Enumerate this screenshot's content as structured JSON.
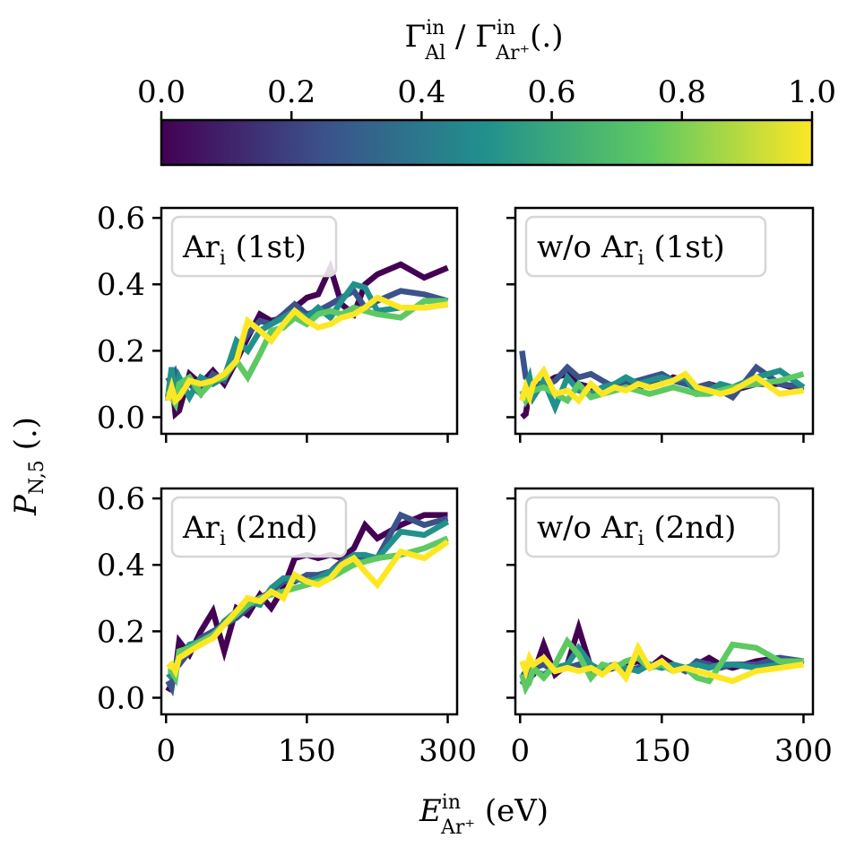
{
  "colorbar": {
    "label_main": "Γ",
    "label_sup1": "in",
    "label_sub1": "Al",
    "label_sep": " / Γ",
    "label_sup2": "in",
    "label_sub2": "Ar⁺",
    "label_tail": "(.)",
    "ticks": [
      "0.0",
      "0.2",
      "0.4",
      "0.6",
      "0.8",
      "1.0"
    ],
    "tick_values": [
      0.0,
      0.2,
      0.4,
      0.6,
      0.8,
      1.0
    ],
    "colors": [
      "#440154",
      "#3b528b",
      "#21918c",
      "#5ec962",
      "#fde725"
    ]
  },
  "ylabel": {
    "main": "P",
    "sub": "N,5",
    "tail": " (.)"
  },
  "xlabel": {
    "main": "E",
    "sup": "in",
    "sub": "Ar⁺",
    "tail": " (eV)"
  },
  "series_colors": [
    "#440154",
    "#3b528b",
    "#21918c",
    "#5ec962",
    "#fde725"
  ],
  "chart_data": [
    {
      "type": "line",
      "panel": "top-left",
      "legend_label": {
        "main": "Ar",
        "sub": "i",
        "tail": " (1st)"
      },
      "xlim": [
        -5,
        310
      ],
      "ylim": [
        -0.05,
        0.63
      ],
      "xticks": [
        0,
        150,
        300
      ],
      "yticks": [
        0.0,
        0.2,
        0.4,
        0.6
      ],
      "yticklabels": [
        "0.0",
        "0.2",
        "0.4",
        "0.6"
      ],
      "x": [
        2,
        6,
        10,
        14,
        25,
        37,
        50,
        62,
        75,
        87,
        100,
        112,
        125,
        137,
        150,
        162,
        175,
        187,
        200,
        212,
        225,
        250,
        275,
        300
      ],
      "series": [
        {
          "color_value": 0.0,
          "values": [
            0.05,
            0.12,
            0.01,
            0.02,
            0.13,
            0.1,
            0.14,
            0.1,
            0.17,
            0.24,
            0.31,
            0.29,
            0.3,
            0.33,
            0.36,
            0.37,
            0.45,
            0.34,
            0.31,
            0.4,
            0.43,
            0.46,
            0.42,
            0.45
          ]
        },
        {
          "color_value": 0.25,
          "values": [
            0.12,
            0.1,
            0.13,
            0.09,
            0.1,
            0.07,
            0.13,
            0.11,
            0.2,
            0.25,
            0.29,
            0.28,
            0.31,
            0.34,
            0.31,
            0.32,
            0.34,
            0.36,
            0.38,
            0.33,
            0.35,
            0.38,
            0.37,
            0.35
          ]
        },
        {
          "color_value": 0.5,
          "values": [
            0.06,
            0.15,
            0.05,
            0.12,
            0.06,
            0.12,
            0.1,
            0.12,
            0.23,
            0.2,
            0.26,
            0.28,
            0.3,
            0.32,
            0.3,
            0.33,
            0.3,
            0.35,
            0.4,
            0.39,
            0.32,
            0.33,
            0.33,
            0.34
          ]
        },
        {
          "color_value": 0.75,
          "values": [
            0.08,
            0.06,
            0.04,
            0.1,
            0.12,
            0.07,
            0.11,
            0.12,
            0.17,
            0.12,
            0.19,
            0.26,
            0.27,
            0.3,
            0.28,
            0.31,
            0.32,
            0.31,
            0.33,
            0.32,
            0.31,
            0.3,
            0.35,
            0.35
          ]
        },
        {
          "color_value": 1.0,
          "values": [
            0.05,
            0.09,
            0.05,
            0.06,
            0.11,
            0.1,
            0.11,
            0.13,
            0.17,
            0.29,
            0.26,
            0.23,
            0.28,
            0.32,
            0.29,
            0.27,
            0.28,
            0.3,
            0.31,
            0.33,
            0.36,
            0.33,
            0.33,
            0.34
          ]
        }
      ]
    },
    {
      "type": "line",
      "panel": "top-right",
      "legend_label": {
        "main": "w/o Ar",
        "sub": "i",
        "tail": " (1st)"
      },
      "xlim": [
        -5,
        310
      ],
      "ylim": [
        -0.05,
        0.63
      ],
      "xticks": [
        0,
        150,
        300
      ],
      "yticks": [
        0.0,
        0.2,
        0.4,
        0.6
      ],
      "x": [
        2,
        6,
        10,
        14,
        25,
        37,
        50,
        62,
        75,
        87,
        100,
        112,
        125,
        137,
        150,
        162,
        175,
        187,
        200,
        212,
        225,
        250,
        275,
        300
      ],
      "series": [
        {
          "color_value": 0.0,
          "values": [
            0.0,
            0.01,
            0.08,
            0.1,
            0.1,
            0.12,
            0.13,
            0.1,
            0.09,
            0.08,
            0.1,
            0.11,
            0.09,
            0.1,
            0.1,
            0.12,
            0.11,
            0.09,
            0.1,
            0.09,
            0.08,
            0.1,
            0.1,
            0.08
          ]
        },
        {
          "color_value": 0.25,
          "values": [
            0.2,
            0.12,
            0.11,
            0.1,
            0.09,
            0.11,
            0.15,
            0.12,
            0.13,
            0.11,
            0.09,
            0.1,
            0.11,
            0.12,
            0.13,
            0.11,
            0.1,
            0.09,
            0.1,
            0.08,
            0.06,
            0.15,
            0.1,
            0.09
          ]
        },
        {
          "color_value": 0.5,
          "values": [
            0.05,
            0.09,
            0.12,
            0.06,
            0.11,
            0.03,
            0.12,
            0.08,
            0.07,
            0.09,
            0.1,
            0.12,
            0.1,
            0.11,
            0.12,
            0.11,
            0.12,
            0.07,
            0.08,
            0.1,
            0.09,
            0.12,
            0.14,
            0.09
          ]
        },
        {
          "color_value": 0.75,
          "values": [
            0.08,
            0.05,
            0.07,
            0.08,
            0.09,
            0.07,
            0.05,
            0.1,
            0.06,
            0.07,
            0.08,
            0.09,
            0.08,
            0.07,
            0.08,
            0.09,
            0.08,
            0.07,
            0.07,
            0.08,
            0.09,
            0.1,
            0.11,
            0.13
          ]
        },
        {
          "color_value": 1.0,
          "values": [
            0.05,
            0.09,
            0.06,
            0.1,
            0.14,
            0.07,
            0.08,
            0.05,
            0.1,
            0.07,
            0.09,
            0.08,
            0.1,
            0.09,
            0.1,
            0.11,
            0.13,
            0.09,
            0.08,
            0.07,
            0.08,
            0.12,
            0.07,
            0.08
          ]
        }
      ]
    },
    {
      "type": "line",
      "panel": "bottom-left",
      "legend_label": {
        "main": "Ar",
        "sub": "i",
        "tail": " (2nd)"
      },
      "xlim": [
        -5,
        310
      ],
      "ylim": [
        -0.05,
        0.63
      ],
      "xticks": [
        0,
        150,
        300
      ],
      "yticks": [
        0.0,
        0.2,
        0.4,
        0.6
      ],
      "yticklabels": [
        "0.0",
        "0.2",
        "0.4",
        "0.6"
      ],
      "xticklabels": [
        "0",
        "150",
        "300"
      ],
      "x": [
        2,
        6,
        10,
        14,
        25,
        37,
        50,
        62,
        75,
        87,
        100,
        112,
        125,
        137,
        150,
        162,
        175,
        187,
        200,
        212,
        225,
        250,
        275,
        300
      ],
      "series": [
        {
          "color_value": 0.0,
          "values": [
            0.02,
            0.04,
            0.08,
            0.17,
            0.13,
            0.2,
            0.26,
            0.14,
            0.27,
            0.25,
            0.31,
            0.27,
            0.33,
            0.42,
            0.43,
            0.42,
            0.43,
            0.42,
            0.45,
            0.52,
            0.48,
            0.52,
            0.55,
            0.55
          ]
        },
        {
          "color_value": 0.25,
          "values": [
            0.05,
            0.03,
            0.1,
            0.1,
            0.14,
            0.18,
            0.2,
            0.22,
            0.24,
            0.27,
            0.3,
            0.32,
            0.35,
            0.35,
            0.37,
            0.37,
            0.38,
            0.41,
            0.43,
            0.42,
            0.42,
            0.55,
            0.52,
            0.54
          ]
        },
        {
          "color_value": 0.5,
          "values": [
            0.06,
            0.07,
            0.1,
            0.12,
            0.16,
            0.17,
            0.18,
            0.23,
            0.26,
            0.29,
            0.28,
            0.33,
            0.36,
            0.36,
            0.35,
            0.36,
            0.38,
            0.4,
            0.43,
            0.43,
            0.42,
            0.5,
            0.49,
            0.53
          ]
        },
        {
          "color_value": 0.75,
          "values": [
            0.08,
            0.08,
            0.06,
            0.14,
            0.15,
            0.17,
            0.19,
            0.22,
            0.25,
            0.28,
            0.3,
            0.31,
            0.32,
            0.33,
            0.34,
            0.35,
            0.36,
            0.38,
            0.4,
            0.41,
            0.42,
            0.43,
            0.45,
            0.48
          ]
        },
        {
          "color_value": 1.0,
          "values": [
            0.09,
            0.1,
            0.08,
            0.12,
            0.14,
            0.16,
            0.18,
            0.22,
            0.26,
            0.3,
            0.29,
            0.32,
            0.3,
            0.37,
            0.35,
            0.34,
            0.36,
            0.4,
            0.42,
            0.38,
            0.34,
            0.44,
            0.42,
            0.47
          ]
        }
      ]
    },
    {
      "type": "line",
      "panel": "bottom-right",
      "legend_label": {
        "main": "w/o Ar",
        "sub": "i",
        "tail": " (2nd)"
      },
      "xlim": [
        -5,
        310
      ],
      "ylim": [
        -0.05,
        0.63
      ],
      "xticks": [
        0,
        150,
        300
      ],
      "yticks": [
        0.0,
        0.2,
        0.4,
        0.6
      ],
      "xticklabels": [
        "0",
        "150",
        "300"
      ],
      "x": [
        2,
        6,
        10,
        14,
        25,
        37,
        50,
        62,
        75,
        87,
        100,
        112,
        125,
        137,
        150,
        162,
        175,
        187,
        200,
        212,
        225,
        250,
        275,
        300
      ],
      "series": [
        {
          "color_value": 0.0,
          "values": [
            0.05,
            0.04,
            0.06,
            0.07,
            0.16,
            0.07,
            0.1,
            0.21,
            0.09,
            0.08,
            0.09,
            0.1,
            0.11,
            0.09,
            0.12,
            0.1,
            0.08,
            0.1,
            0.12,
            0.1,
            0.09,
            0.11,
            0.12,
            0.1
          ]
        },
        {
          "color_value": 0.25,
          "values": [
            0.06,
            0.08,
            0.07,
            0.09,
            0.1,
            0.08,
            0.09,
            0.1,
            0.08,
            0.09,
            0.1,
            0.08,
            0.09,
            0.1,
            0.09,
            0.1,
            0.08,
            0.11,
            0.1,
            0.09,
            0.1,
            0.1,
            0.12,
            0.11
          ]
        },
        {
          "color_value": 0.5,
          "values": [
            0.04,
            0.06,
            0.05,
            0.08,
            0.07,
            0.09,
            0.1,
            0.15,
            0.1,
            0.08,
            0.1,
            0.09,
            0.08,
            0.1,
            0.09,
            0.1,
            0.09,
            0.1,
            0.09,
            0.1,
            0.1,
            0.09,
            0.1,
            0.11
          ]
        },
        {
          "color_value": 0.75,
          "values": [
            0.07,
            0.03,
            0.05,
            0.09,
            0.06,
            0.1,
            0.17,
            0.13,
            0.06,
            0.1,
            0.09,
            0.11,
            0.12,
            0.09,
            0.1,
            0.08,
            0.09,
            0.06,
            0.05,
            0.1,
            0.16,
            0.15,
            0.11,
            0.11
          ]
        },
        {
          "color_value": 1.0,
          "values": [
            0.11,
            0.08,
            0.12,
            0.1,
            0.12,
            0.08,
            0.09,
            0.08,
            0.09,
            0.07,
            0.1,
            0.06,
            0.15,
            0.09,
            0.11,
            0.08,
            0.09,
            0.08,
            0.07,
            0.06,
            0.05,
            0.08,
            0.09,
            0.1
          ]
        }
      ]
    }
  ]
}
